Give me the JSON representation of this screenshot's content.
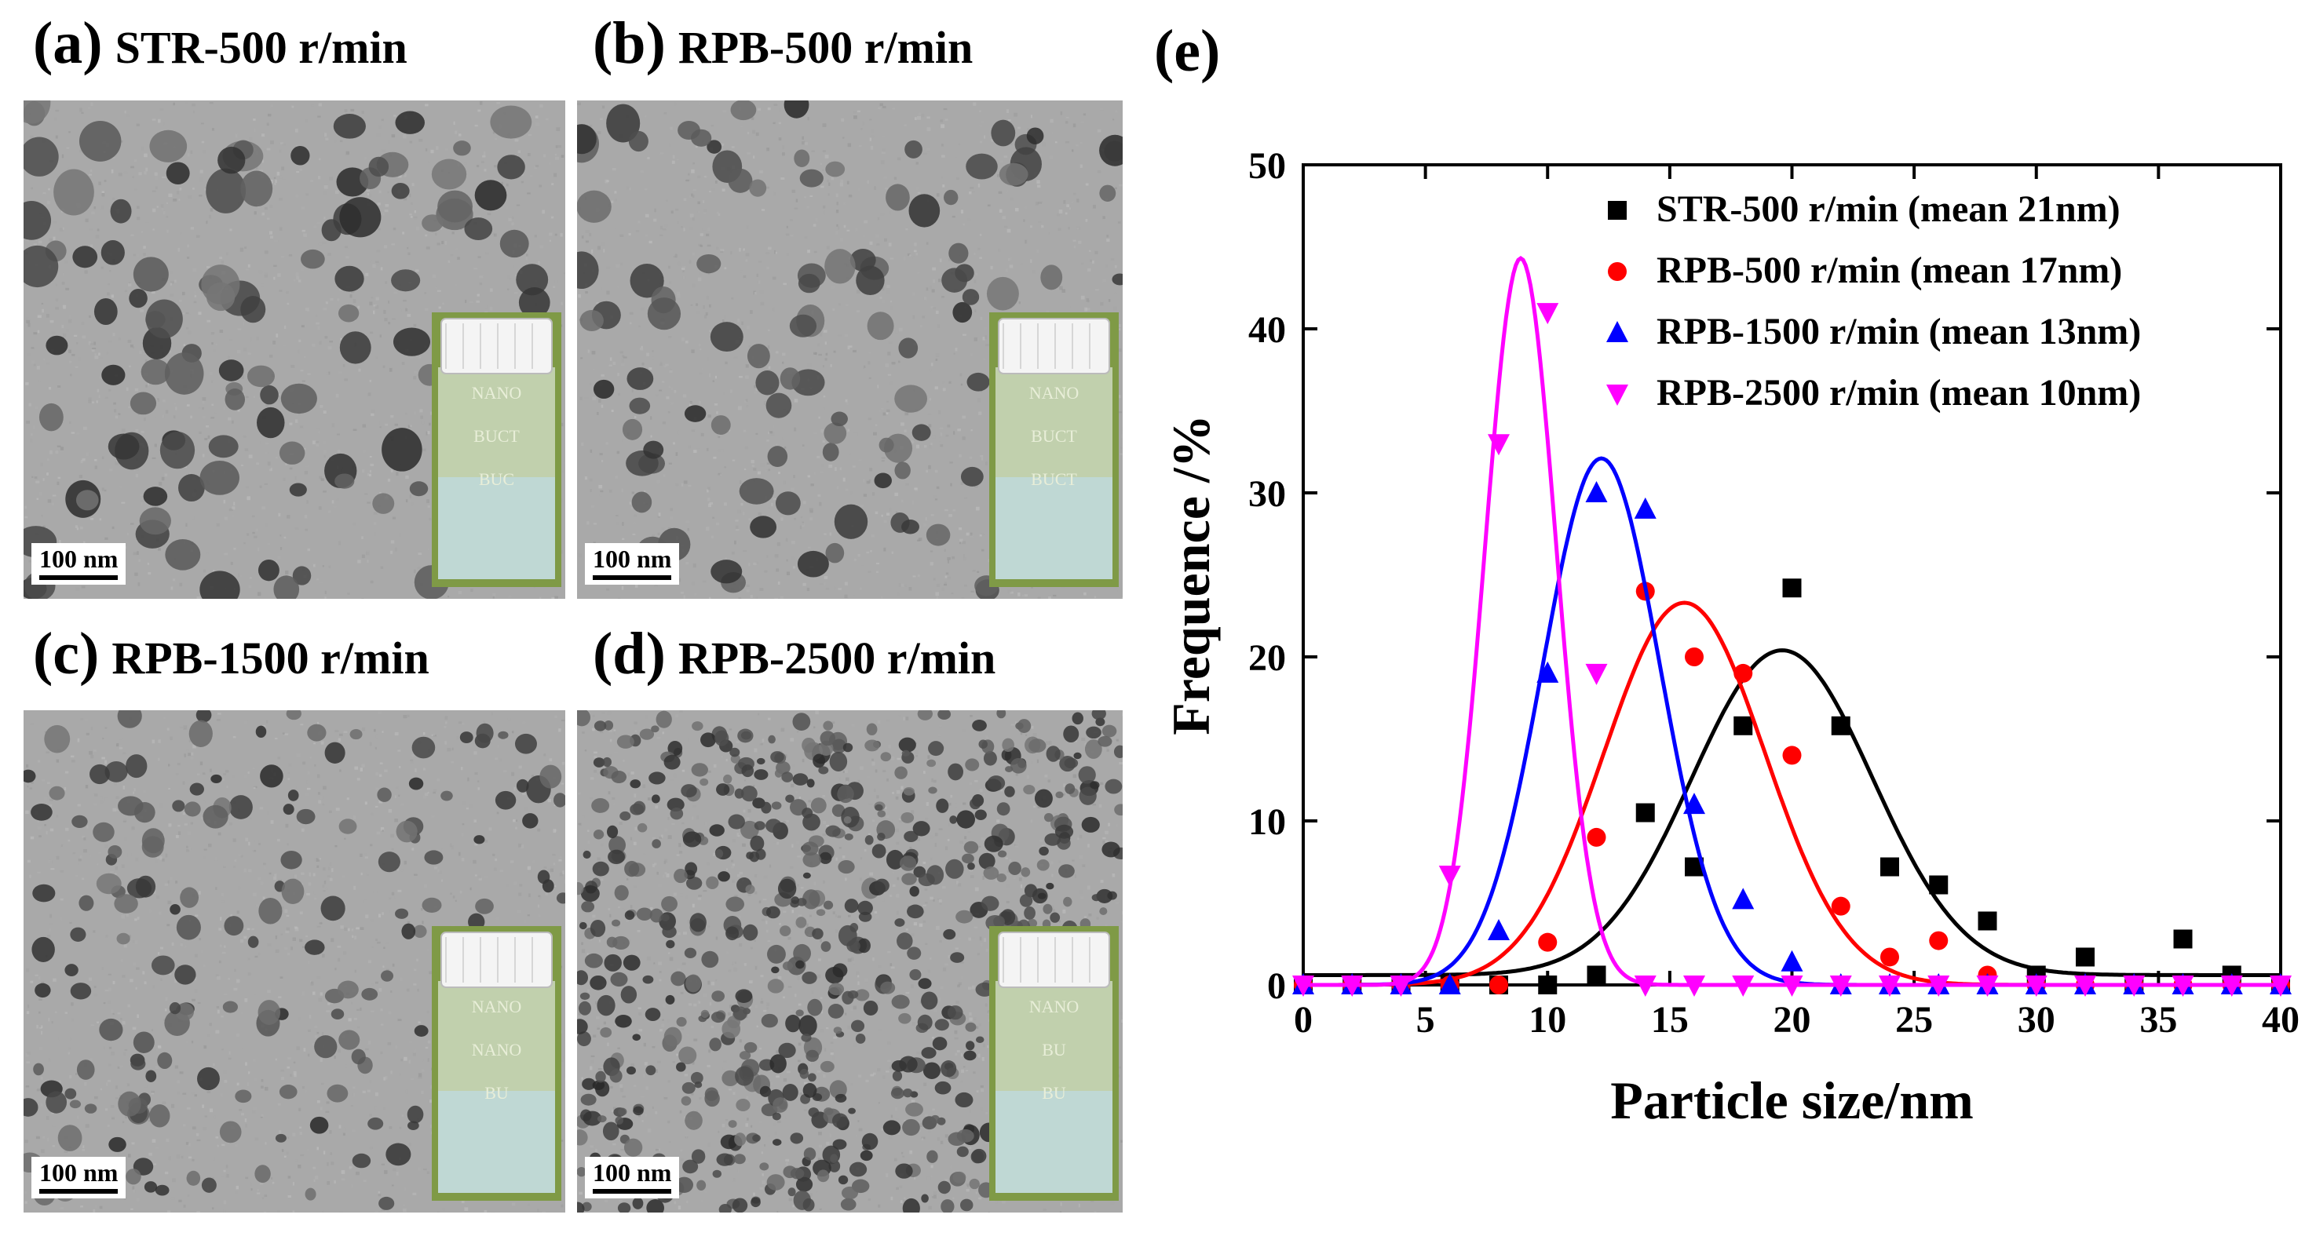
{
  "panels": [
    {
      "id": "a",
      "tag": "(a)",
      "label": "STR-500 r/min",
      "scale": "100 nm",
      "density": 0.55,
      "psize": 18,
      "shade": 0.45,
      "vial_text": [
        "NANO",
        "BUCT",
        "BUC"
      ]
    },
    {
      "id": "b",
      "tag": "(b)",
      "label": "RPB-500 r/min",
      "scale": "100 nm",
      "density": 0.35,
      "psize": 15,
      "shade": 0.35,
      "vial_text": [
        "NANO",
        "BUCT",
        "BUCT"
      ]
    },
    {
      "id": "c",
      "tag": "(c)",
      "label": "RPB-1500 r/min",
      "scale": "100 nm",
      "density": 0.3,
      "psize": 11,
      "shade": 0.4,
      "vial_text": [
        "NANO",
        "NANO",
        "BU"
      ]
    },
    {
      "id": "d",
      "tag": "(d)",
      "label": "RPB-2500 r/min",
      "scale": "100 nm",
      "density": 0.6,
      "psize": 8,
      "shade": 0.4,
      "vial_text": [
        "NANO",
        "BU",
        "BU"
      ]
    }
  ],
  "chart_label": "(e)",
  "chart_data": {
    "type": "scatter",
    "xlabel": "Particle size/nm",
    "ylabel": "Frequence /%",
    "xlim": [
      0,
      40
    ],
    "ylim": [
      0,
      50
    ],
    "xticks": [
      0,
      5,
      10,
      15,
      20,
      25,
      30,
      35,
      40
    ],
    "yticks": [
      0,
      10,
      20,
      30,
      40,
      50
    ],
    "legend_position": "top-right",
    "series": [
      {
        "name": "STR-500 r/min (mean 21nm)",
        "marker": "square",
        "color": "#000000",
        "points": [
          [
            0,
            0
          ],
          [
            2,
            0
          ],
          [
            4,
            0
          ],
          [
            6,
            0
          ],
          [
            8,
            0
          ],
          [
            10,
            0
          ],
          [
            12,
            0.6
          ],
          [
            14,
            10.5
          ],
          [
            16,
            7.2
          ],
          [
            18,
            15.8
          ],
          [
            20,
            24.2
          ],
          [
            22,
            15.8
          ],
          [
            24,
            7.2
          ],
          [
            26,
            6.1
          ],
          [
            28,
            3.9
          ],
          [
            30,
            0.6
          ],
          [
            32,
            1.7
          ],
          [
            34,
            0
          ],
          [
            36,
            2.8
          ],
          [
            38,
            0.6
          ],
          [
            40,
            0
          ]
        ],
        "fit": {
          "mean": 19.6,
          "sd": 3.7,
          "amp": 19.8,
          "base": 0.6
        }
      },
      {
        "name": "RPB-500 r/min (mean 17nm)",
        "marker": "circle",
        "color": "#ff0000",
        "points": [
          [
            0,
            0
          ],
          [
            2,
            0
          ],
          [
            4,
            0
          ],
          [
            6,
            0
          ],
          [
            8,
            0
          ],
          [
            10,
            2.6
          ],
          [
            12,
            9
          ],
          [
            14,
            24
          ],
          [
            16,
            20
          ],
          [
            18,
            19
          ],
          [
            20,
            14
          ],
          [
            22,
            4.8
          ],
          [
            24,
            1.7
          ],
          [
            26,
            2.7
          ],
          [
            28,
            0.6
          ],
          [
            30,
            0
          ],
          [
            32,
            0
          ],
          [
            34,
            0
          ],
          [
            36,
            0
          ],
          [
            38,
            0
          ],
          [
            40,
            0
          ]
        ],
        "fit": {
          "mean": 15.6,
          "sd": 3.3,
          "amp": 23.3,
          "base": 0
        }
      },
      {
        "name": "RPB-1500 r/min (mean 13nm)",
        "marker": "triangle-up",
        "color": "#0000ff",
        "points": [
          [
            0,
            0
          ],
          [
            2,
            0
          ],
          [
            4,
            0
          ],
          [
            6,
            0
          ],
          [
            8,
            3.3
          ],
          [
            10,
            19
          ],
          [
            12,
            30
          ],
          [
            14,
            29
          ],
          [
            16,
            11
          ],
          [
            18,
            5.2
          ],
          [
            20,
            1.4
          ],
          [
            22,
            0
          ],
          [
            24,
            0
          ],
          [
            26,
            0
          ],
          [
            28,
            0
          ],
          [
            30,
            0
          ],
          [
            32,
            0
          ],
          [
            34,
            0
          ],
          [
            36,
            0
          ],
          [
            38,
            0
          ],
          [
            40,
            0
          ]
        ],
        "fit": {
          "mean": 12.2,
          "sd": 2.4,
          "amp": 32.1,
          "base": 0
        }
      },
      {
        "name": "RPB-2500 r/min (mean 10nm)",
        "marker": "triangle-down",
        "color": "#ff00ff",
        "points": [
          [
            0,
            0
          ],
          [
            2,
            0
          ],
          [
            4,
            0
          ],
          [
            6,
            6.7
          ],
          [
            8,
            33
          ],
          [
            10,
            41
          ],
          [
            12,
            19
          ],
          [
            14,
            0
          ],
          [
            16,
            0
          ],
          [
            18,
            0
          ],
          [
            20,
            0
          ],
          [
            22,
            0
          ],
          [
            24,
            0
          ],
          [
            26,
            0
          ],
          [
            28,
            0
          ],
          [
            30,
            0
          ],
          [
            32,
            0
          ],
          [
            34,
            0
          ],
          [
            36,
            0
          ],
          [
            38,
            0
          ],
          [
            40,
            0
          ]
        ],
        "fit": {
          "mean": 8.9,
          "sd": 1.45,
          "amp": 44.3,
          "base": 0
        }
      }
    ]
  }
}
